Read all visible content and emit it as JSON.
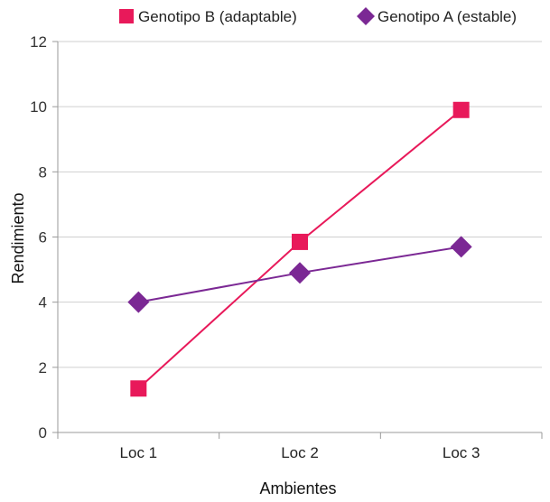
{
  "chart_data": {
    "type": "line",
    "title": "",
    "xlabel": "Ambientes",
    "ylabel": "Rendimiento",
    "categories": [
      "Loc 1",
      "Loc 2",
      "Loc 3"
    ],
    "ylim": [
      0,
      12
    ],
    "yticks": [
      0,
      2,
      4,
      6,
      8,
      10,
      12
    ],
    "grid": "horizontal",
    "legend_position": "top-right",
    "series": [
      {
        "name": "Genotipo B (adaptable)",
        "values": [
          1.35,
          5.85,
          9.9
        ],
        "color": "#e8195a",
        "marker": "square"
      },
      {
        "name": "Genotipo A (estable)",
        "values": [
          4.0,
          4.9,
          5.7
        ],
        "color": "#7b2894",
        "marker": "diamond"
      }
    ]
  }
}
